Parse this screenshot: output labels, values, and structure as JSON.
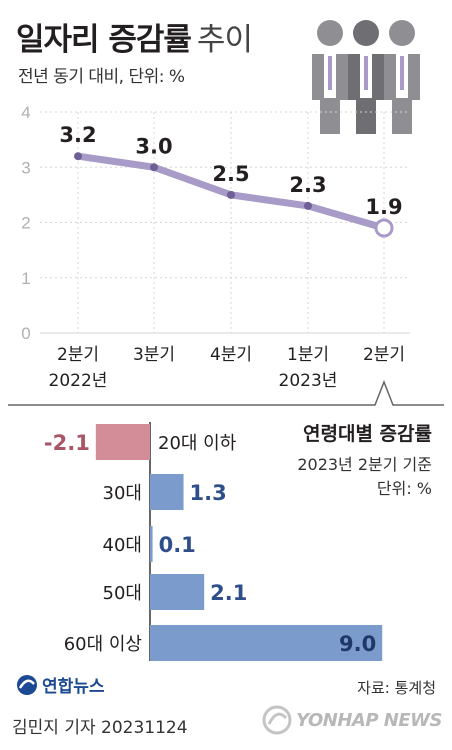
{
  "header": {
    "title_bold": "일자리 증감률",
    "title_light": "추이",
    "subtitle": "전년 동기 대비, 단위: %"
  },
  "chart_data": [
    {
      "type": "line",
      "categories": [
        "2분기",
        "3분기",
        "4분기",
        "1분기",
        "2분기"
      ],
      "year_labels": [
        "2022년",
        "",
        "",
        "2023년",
        ""
      ],
      "series": [
        {
          "values": [
            3.2,
            3.0,
            2.5,
            2.3,
            1.9
          ]
        }
      ],
      "ylim": [
        0,
        4
      ],
      "yticks": [
        0,
        1,
        2,
        3,
        4
      ],
      "grid": true,
      "colors": {
        "line": "#a89bc7",
        "marker": "#6f5f96"
      }
    },
    {
      "type": "bar",
      "orientation": "horizontal",
      "title": "연령대별 증감률",
      "subtitle": "2023년 2분기 기준",
      "unit": "단위: %",
      "categories": [
        "20대 이하",
        "30대",
        "40대",
        "50대",
        "60대 이상"
      ],
      "values": [
        -2.1,
        1.3,
        0.1,
        2.1,
        9.0
      ],
      "value_labels": [
        "-2.1",
        "1.3",
        "0.1",
        "2.1",
        "9.0"
      ],
      "colors": {
        "positive": "#7b9bcc",
        "negative": "#d38d99",
        "positive_text": "#2f4f8a",
        "negative_text": "#a85666"
      }
    }
  ],
  "footer": {
    "logo_text": "연합뉴스",
    "source": "자료: 통계청",
    "byline": "김민지 기자  20231124",
    "watermark": "YONHAP NEWS"
  },
  "icons": {
    "people": "people-icon",
    "logo": "yonhap-logo-icon",
    "watermark": "yonhap-watermark-icon"
  }
}
